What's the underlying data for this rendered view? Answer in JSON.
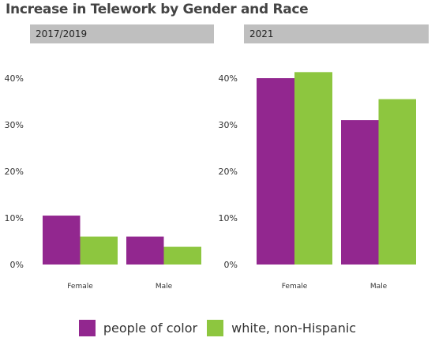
{
  "chart_data": {
    "type": "bar",
    "title": "Increase in Telework by Gender and Race",
    "xlabel": "",
    "ylabel": "",
    "ylim": [
      0,
      0.42
    ],
    "yticks": [
      "0%",
      "10%",
      "20%",
      "30%",
      "40%"
    ],
    "yticks_values": [
      0,
      0.1,
      0.2,
      0.3,
      0.4
    ],
    "grid": false,
    "legend_position": "bottom",
    "colors": {
      "people of color": "#92278f",
      "white, non-Hispanic": "#8dc63f"
    },
    "panels": [
      {
        "label": "2017/2019",
        "categories": [
          "Female",
          "Male"
        ],
        "series": [
          {
            "name": "people of color",
            "values": [
              0.105,
              0.06
            ]
          },
          {
            "name": "white, non-Hispanic",
            "values": [
              0.06,
              0.038
            ]
          }
        ]
      },
      {
        "label": "2021",
        "categories": [
          "Female",
          "Male"
        ],
        "series": [
          {
            "name": "people of color",
            "values": [
              0.4,
              0.31
            ]
          },
          {
            "name": "white, non-Hispanic",
            "values": [
              0.413,
              0.355
            ]
          }
        ]
      }
    ]
  }
}
